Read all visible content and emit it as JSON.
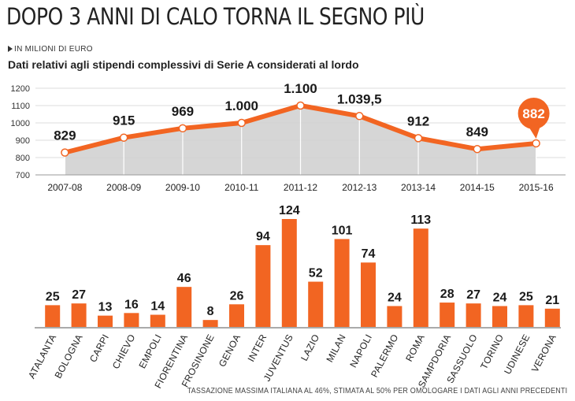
{
  "title": "DOPO 3 ANNI DI CALO TORNA IL SEGNO PIÙ",
  "unit": "IN MILIONI DI EURO",
  "subtitle": "Dati relativi agli stipendi complessivi di Serie A considerati al lordo",
  "footnote": "TASSAZIONE MASSIMA ITALIANA AL 46%, STIMATA AL 50% PER OMOLOGARE I DATI AGLI ANNI PRECEDENTI",
  "colors": {
    "accent": "#f26522",
    "area": "#cfcfcf",
    "grid": "#dddddd"
  },
  "chart_data": [
    {
      "type": "area",
      "categories": [
        "2007-08",
        "2008-09",
        "2009-10",
        "2010-11",
        "2011-12",
        "2012-13",
        "2013-14",
        "2014-15",
        "2015-16"
      ],
      "values": [
        829,
        915,
        969,
        1000,
        1100,
        1039.5,
        912,
        849,
        882
      ],
      "value_labels": [
        "829",
        "915",
        "969",
        "1.000",
        "1.100",
        "1.039,5",
        "912",
        "849",
        "882"
      ],
      "y_ticks": [
        "700",
        "800",
        "900",
        "1000",
        "1100",
        "1200"
      ],
      "ylim": [
        700,
        1200
      ],
      "highlight_last": true,
      "grid": true
    },
    {
      "type": "bar",
      "categories": [
        "ATALANTA",
        "BOLOGNA",
        "CARPI",
        "CHIEVO",
        "EMPOLI",
        "FIORENTINA",
        "FROSINONE",
        "GENOA",
        "INTER",
        "JUVENTUS",
        "LAZIO",
        "MILAN",
        "NAPOLI",
        "PALERMO",
        "ROMA",
        "SAMPDORIA",
        "SASSUOLO",
        "TORINO",
        "UDINESE",
        "VERONA"
      ],
      "values": [
        25,
        27,
        13,
        16,
        14,
        46,
        8,
        26,
        94,
        124,
        52,
        101,
        74,
        24,
        113,
        28,
        27,
        24,
        25,
        21
      ]
    }
  ]
}
